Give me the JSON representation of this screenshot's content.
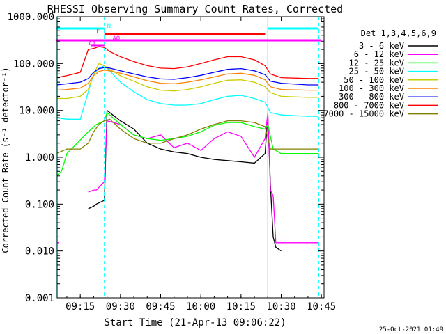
{
  "chart_data": {
    "type": "line",
    "title": "RHESSI Observing Summary Count Rates, Corrected",
    "xlabel": "Start Time (21-Apr-13 09:06:22)",
    "ylabel": "Corrected Count Rate (s⁻¹ detector⁻¹)",
    "y_scale": "log",
    "ylim": [
      0.001,
      1000
    ],
    "xlim": [
      "09:06:22",
      "10:46:00"
    ],
    "x_ticks": [
      "09:15",
      "09:30",
      "09:45",
      "10:00",
      "10:15",
      "10:30",
      "10:45"
    ],
    "y_ticks": [
      "0.001",
      "0.010",
      "0.100",
      "1.000",
      "10.000",
      "100.000",
      "1000.000"
    ],
    "legend_title": "Det 1,3,4,5,6,9",
    "legend_position": "right",
    "footer": "25-Oct-2021 01:49",
    "flags": [
      {
        "name": "N",
        "color": "#00ffff",
        "intervals": [
          [
            "09:06",
            "09:24"
          ],
          [
            "10:25",
            "10:44"
          ]
        ]
      },
      {
        "name": "F",
        "color": "#ff0000",
        "intervals": [
          [
            "09:24",
            "10:24"
          ]
        ]
      },
      {
        "name": "AO",
        "color": "#ff00ff",
        "intervals": [
          [
            "09:06",
            "10:45"
          ]
        ]
      },
      {
        "name": "A1",
        "color": "#ff00ff",
        "intervals": [
          [
            "09:19",
            "09:24"
          ]
        ]
      }
    ],
    "markers": [
      {
        "type": "solid",
        "color": "#00ffff",
        "x": [
          "09:06",
          "10:25"
        ]
      },
      {
        "type": "dashed",
        "color": "#00ffff",
        "x": [
          "09:24",
          "10:44"
        ]
      }
    ],
    "series": [
      {
        "name": "3 - 6 keV",
        "color": "#000000",
        "x": [
          "09:14",
          "09:18",
          "09:20",
          "09:21",
          "09:24",
          "09:25",
          "09:30",
          "09:35",
          "09:40",
          "09:45",
          "09:50",
          "09:55",
          "10:00",
          "10:05",
          "10:10",
          "10:15",
          "10:20",
          "10:24",
          "10:25",
          "10:26",
          "10:27",
          "10:28",
          "10:30"
        ],
        "values": [
          null,
          0.08,
          0.09,
          0.1,
          0.12,
          10,
          6,
          4,
          2,
          1.5,
          1.3,
          1.2,
          1.0,
          0.9,
          0.85,
          0.8,
          0.75,
          1.2,
          8,
          0.25,
          0.02,
          0.012,
          0.01
        ]
      },
      {
        "name": "6 - 12 keV",
        "color": "#ff00ff",
        "x": [
          "09:06",
          "09:07",
          "09:08",
          "09:18",
          "09:20",
          "09:21",
          "09:24",
          "09:25",
          "09:30",
          "09:35",
          "09:40",
          "09:45",
          "09:50",
          "09:55",
          "10:00",
          "10:05",
          "10:10",
          "10:15",
          "10:20",
          "10:24",
          "10:25",
          "10:26",
          "10:27",
          "10:28",
          "10:30",
          "10:44"
        ],
        "values": [
          0.015,
          0.015,
          null,
          0.18,
          0.2,
          0.2,
          0.3,
          6,
          5,
          3,
          2.5,
          3,
          1.6,
          2.0,
          1.4,
          2.5,
          3.5,
          2.8,
          1.0,
          2.5,
          9,
          0.2,
          0.15,
          0.015,
          0.015,
          0.015
        ]
      },
      {
        "name": "12 - 25 keV",
        "color": "#00ff00",
        "x": [
          "09:06",
          "09:08",
          "09:10",
          "09:18",
          "09:21",
          "09:24",
          "09:25",
          "09:30",
          "09:35",
          "09:40",
          "09:45",
          "09:50",
          "09:55",
          "10:00",
          "10:05",
          "10:10",
          "10:15",
          "10:20",
          "10:24",
          "10:25",
          "10:27",
          "10:30",
          "10:40",
          "10:44"
        ],
        "values": [
          0.4,
          0.5,
          1.2,
          3.5,
          5,
          6,
          9,
          5,
          3,
          2.5,
          2.3,
          2.5,
          2.8,
          3.5,
          4.8,
          5.5,
          5.5,
          4.5,
          4,
          5,
          1.5,
          1.2,
          1.2,
          1.2
        ]
      },
      {
        "name": "25 - 50 keV",
        "color": "#00ffff",
        "x": [
          "09:06",
          "09:10",
          "09:15",
          "09:18",
          "09:20",
          "09:22",
          "09:24",
          "09:26",
          "09:30",
          "09:35",
          "09:40",
          "09:45",
          "09:50",
          "09:55",
          "10:00",
          "10:05",
          "10:10",
          "10:15",
          "10:20",
          "10:24",
          "10:26",
          "10:30",
          "10:40",
          "10:44"
        ],
        "values": [
          7,
          6.5,
          6.5,
          25,
          60,
          80,
          90,
          70,
          40,
          25,
          17,
          14,
          13,
          13,
          14,
          17,
          20,
          21,
          18,
          15,
          9,
          8,
          7.5,
          7.5
        ]
      },
      {
        "name": "50 - 100 keV",
        "color": "#cccc00",
        "x": [
          "09:06",
          "09:10",
          "09:15",
          "09:18",
          "09:20",
          "09:22",
          "09:24",
          "09:26",
          "09:30",
          "09:35",
          "09:40",
          "09:45",
          "09:50",
          "09:55",
          "10:00",
          "10:05",
          "10:10",
          "10:15",
          "10:20",
          "10:24",
          "10:26",
          "10:30",
          "10:40",
          "10:44"
        ],
        "values": [
          18,
          18,
          20,
          28,
          60,
          100,
          90,
          75,
          55,
          42,
          32,
          27,
          26,
          28,
          32,
          38,
          44,
          45,
          40,
          32,
          24,
          20,
          19,
          19
        ]
      },
      {
        "name": "100 - 300 keV",
        "color": "#ff8000",
        "x": [
          "09:06",
          "09:10",
          "09:15",
          "09:18",
          "09:20",
          "09:22",
          "09:24",
          "09:26",
          "09:30",
          "09:35",
          "09:40",
          "09:45",
          "09:50",
          "09:55",
          "10:00",
          "10:05",
          "10:10",
          "10:15",
          "10:20",
          "10:24",
          "10:26",
          "10:30",
          "10:40",
          "10:44"
        ],
        "values": [
          27,
          28,
          30,
          38,
          55,
          68,
          72,
          70,
          62,
          52,
          43,
          38,
          37,
          40,
          45,
          52,
          60,
          62,
          56,
          45,
          32,
          28,
          27,
          27
        ]
      },
      {
        "name": "300 - 800 keV",
        "color": "#0000ff",
        "x": [
          "09:06",
          "09:10",
          "09:15",
          "09:18",
          "09:20",
          "09:22",
          "09:24",
          "09:26",
          "09:30",
          "09:35",
          "09:40",
          "09:45",
          "09:50",
          "09:55",
          "10:00",
          "10:05",
          "10:10",
          "10:15",
          "10:20",
          "10:24",
          "10:26",
          "10:30",
          "10:40",
          "10:44"
        ],
        "values": [
          35,
          37,
          40,
          48,
          65,
          78,
          82,
          80,
          70,
          60,
          52,
          47,
          46,
          50,
          56,
          65,
          75,
          78,
          70,
          58,
          42,
          38,
          35,
          35
        ]
      },
      {
        "name": "800 - 7000 keV",
        "color": "#ff0000",
        "x": [
          "09:06",
          "09:10",
          "09:15",
          "09:18",
          "09:20",
          "09:22",
          "09:24",
          "09:26",
          "09:30",
          "09:35",
          "09:40",
          "09:45",
          "09:50",
          "09:55",
          "10:00",
          "10:05",
          "10:10",
          "10:15",
          "10:20",
          "10:24",
          "10:26",
          "10:30",
          "10:40",
          "10:44"
        ],
        "values": [
          50,
          55,
          65,
          200,
          210,
          230,
          220,
          180,
          140,
          110,
          90,
          80,
          78,
          85,
          100,
          120,
          140,
          140,
          120,
          90,
          60,
          50,
          48,
          48
        ]
      },
      {
        "name": "7000 - 15000 keV",
        "color": "#808000",
        "x": [
          "09:06",
          "09:10",
          "09:15",
          "09:18",
          "09:20",
          "09:22",
          "09:24",
          "09:26",
          "09:30",
          "09:35",
          "09:40",
          "09:45",
          "09:50",
          "09:55",
          "10:00",
          "10:05",
          "10:10",
          "10:15",
          "10:20",
          "10:24",
          "10:26",
          "10:30",
          "10:40",
          "10:44"
        ],
        "values": [
          1.2,
          1.5,
          1.5,
          2,
          3.5,
          5,
          6,
          6.5,
          4,
          2.5,
          2,
          2,
          2.5,
          3,
          4,
          5,
          6,
          6,
          5.5,
          4.5,
          1.5,
          1.5,
          1.5,
          1.5
        ]
      }
    ]
  }
}
